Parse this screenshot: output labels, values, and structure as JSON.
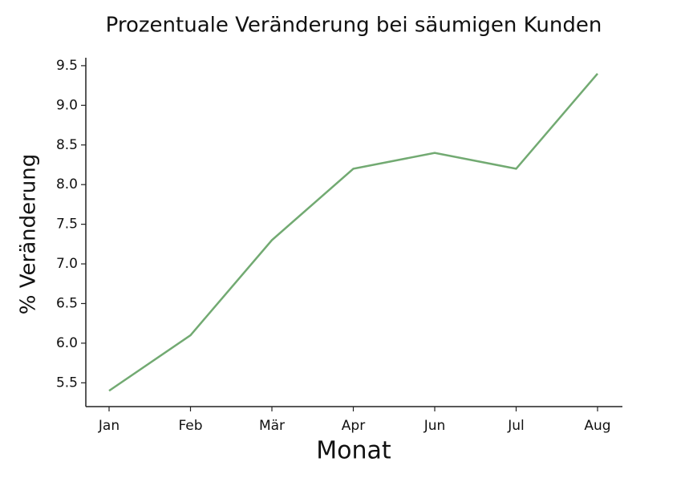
{
  "chart_data": {
    "type": "line",
    "title": "Prozentuale Veränderung bei säumigen Kunden",
    "x_label": "Monat",
    "y_label": "% Veränderung",
    "categories": [
      "Jan",
      "Feb",
      "Mär",
      "Apr",
      "Jun",
      "Jul",
      "Aug"
    ],
    "values": [
      5.4,
      6.1,
      7.3,
      8.2,
      8.4,
      8.2,
      9.4
    ],
    "color": "#72aa72",
    "ylim": [
      5.2,
      9.6
    ],
    "yticks": [
      5.5,
      {
        "value": 6,
        "label": "6.0"
      },
      6.5,
      {
        "value": 7,
        "label": "7.0"
      },
      7.5,
      {
        "value": 8,
        "label": "8.0"
      },
      8.5,
      {
        "value": 9,
        "label": "9.0"
      },
      9.5
    ],
    "grid": false
  }
}
